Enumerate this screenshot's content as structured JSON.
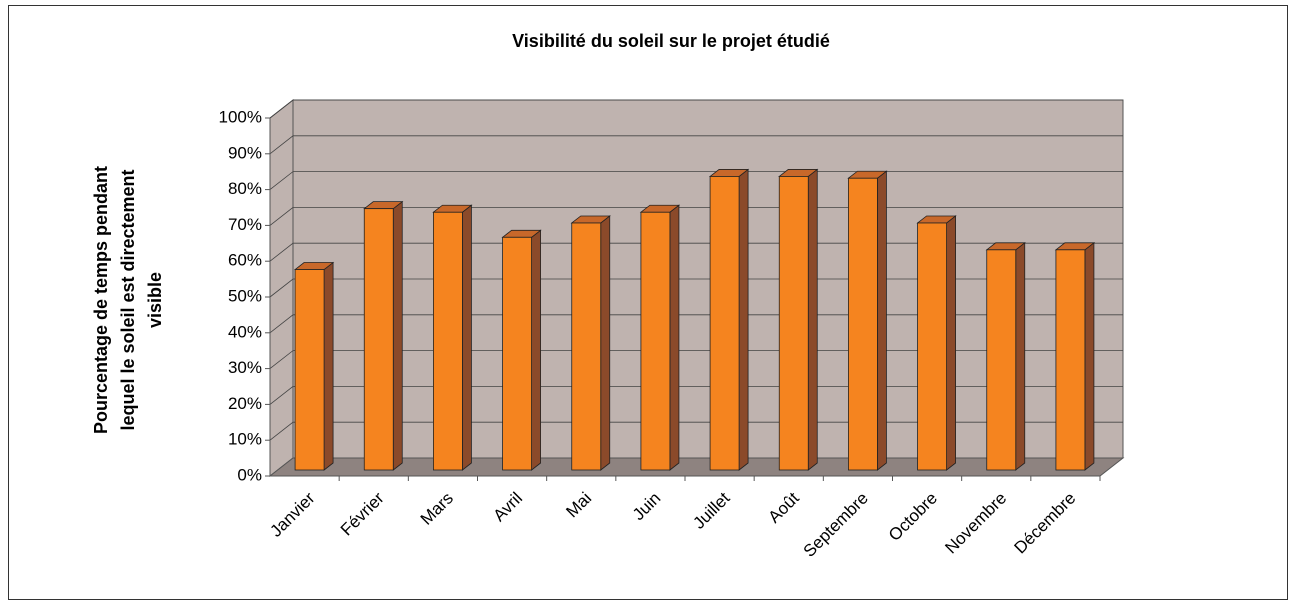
{
  "chart_data": {
    "type": "bar3d",
    "title": "Visibilité du soleil sur le projet étudié",
    "y_label": [
      "Pourcentage de temps pendant",
      "lequel le soleil est directement",
      "visible"
    ],
    "categories": [
      "Janvier",
      "Février",
      "Mars",
      "Avril",
      "Mai",
      "Juin",
      "Juillet",
      "Août",
      "Septembre",
      "Octobre",
      "Novembre",
      "Décembre"
    ],
    "values": [
      56,
      73,
      72,
      65,
      69,
      72,
      82,
      82,
      81.5,
      69,
      61.5,
      61.5
    ],
    "color": "#f5841f",
    "ylim": [
      0,
      100
    ],
    "yticks": [
      {
        "value": 0,
        "label": "0%"
      },
      {
        "value": 10,
        "label": "10%"
      },
      {
        "value": 20,
        "label": "20%"
      },
      {
        "value": 30,
        "label": "30%"
      },
      {
        "value": 40,
        "label": "40%"
      },
      {
        "value": 50,
        "label": "50%"
      },
      {
        "value": 60,
        "label": "60%"
      },
      {
        "value": 70,
        "label": "70%"
      },
      {
        "value": 80,
        "label": "80%"
      },
      {
        "value": 90,
        "label": "90%"
      },
      {
        "value": 100,
        "label": "100%"
      }
    ],
    "grid": true
  }
}
